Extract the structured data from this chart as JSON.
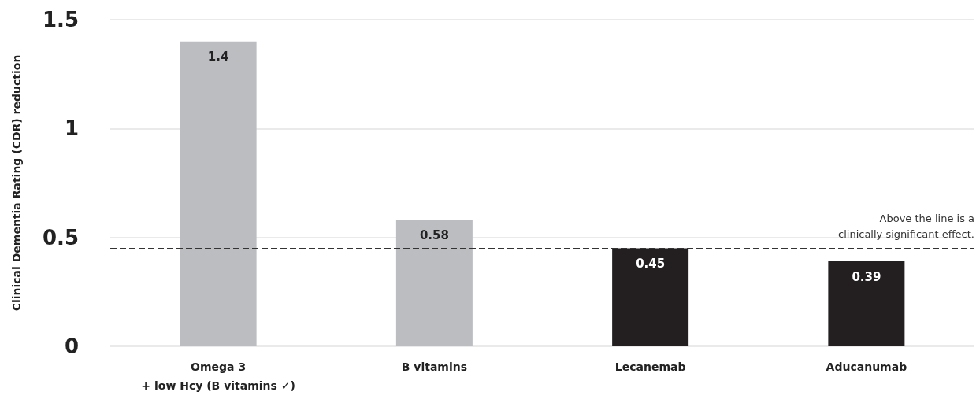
{
  "chart_data": {
    "type": "bar",
    "ylabel": "Clinical Dementia Rating (CDR) reduction",
    "categories": [
      "Omega 3\n+ low Hcy (B vitamins ✓)",
      "B vitamins",
      "Lecanemab",
      "Aducanumab"
    ],
    "values": [
      1.4,
      0.58,
      0.45,
      0.39
    ],
    "colors": [
      "#bcbdc0",
      "#bcbdc0",
      "#231f20",
      "#231f20"
    ],
    "ylim": [
      0,
      1.5
    ],
    "yticks": [
      0,
      0.5,
      1,
      1.5
    ],
    "grid": "y",
    "data_labels": true,
    "ref_lines": [
      {
        "axis": "y",
        "value": 0.45,
        "label": "Above the line is a\nclinically significant effect.",
        "color": "#333333",
        "line_style": "dashed"
      }
    ]
  }
}
